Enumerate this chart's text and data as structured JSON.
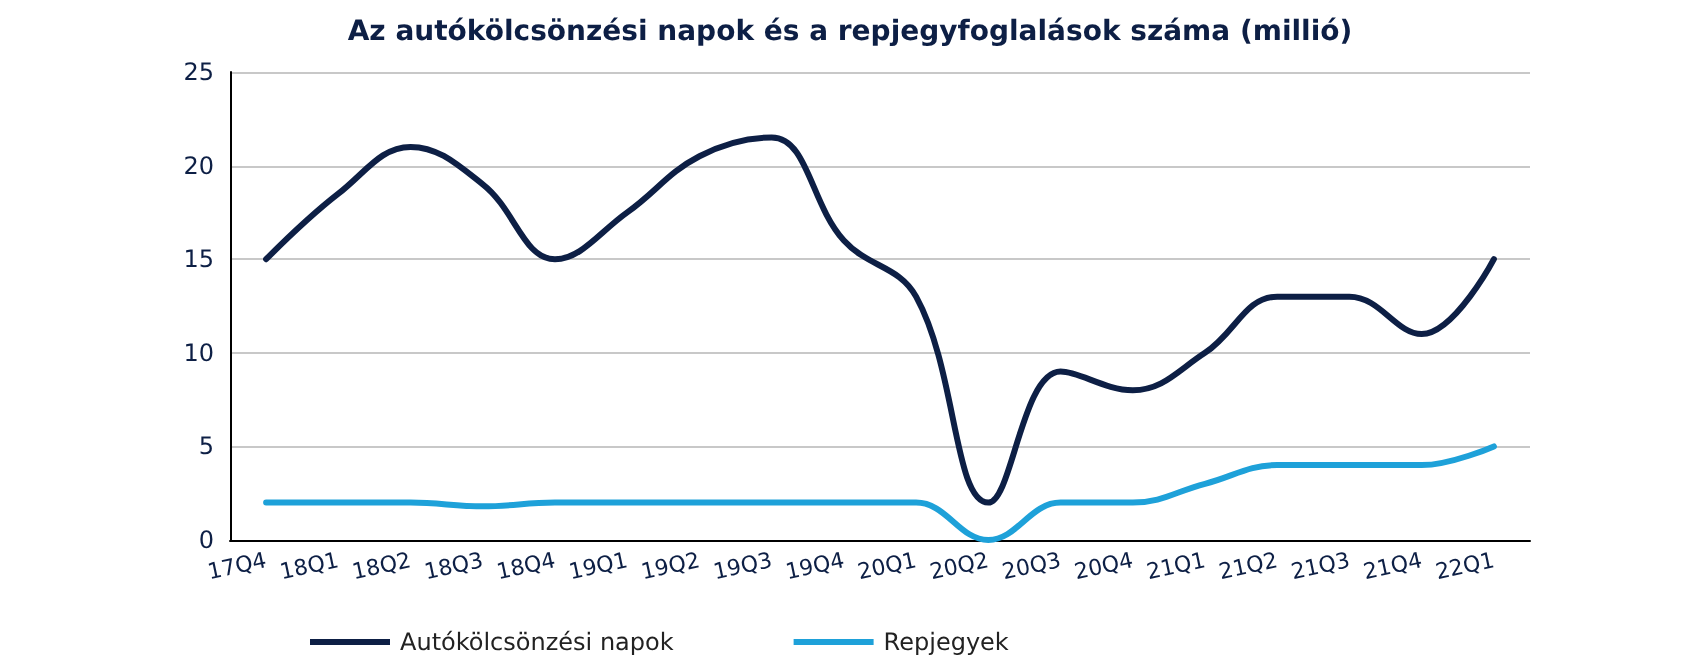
{
  "chart_data": {
    "type": "line",
    "title": "Az autókölcsönzési napok és a repjegyfoglalások száma (millió)",
    "categories": [
      "17Q4",
      "18Q1",
      "18Q2",
      "18Q3",
      "18Q4",
      "19Q1",
      "19Q2",
      "19Q3",
      "19Q4",
      "20Q1",
      "20Q2",
      "20Q3",
      "20Q4",
      "21Q1",
      "21Q2",
      "21Q3",
      "21Q4",
      "22Q1"
    ],
    "series": [
      {
        "name": "Autókölcsönzési napok",
        "color": "#0d1f45",
        "values": [
          15,
          18.5,
          21,
          19,
          15,
          17.5,
          20.5,
          21.5,
          16,
          13,
          2,
          9,
          8,
          10,
          13,
          13,
          11,
          15
        ]
      },
      {
        "name": "Repjegyek",
        "color": "#1ea1d9",
        "values": [
          2,
          2,
          2,
          1.8,
          2,
          2,
          2,
          2,
          2,
          2,
          0,
          2,
          2,
          3,
          4,
          4,
          4,
          5
        ]
      }
    ],
    "ylim": [
      0,
      25
    ],
    "yticks": [
      0,
      5,
      10,
      15,
      20,
      25
    ],
    "grid": "y",
    "legend": "bottom left",
    "marker": "none",
    "line_style": "solid"
  }
}
